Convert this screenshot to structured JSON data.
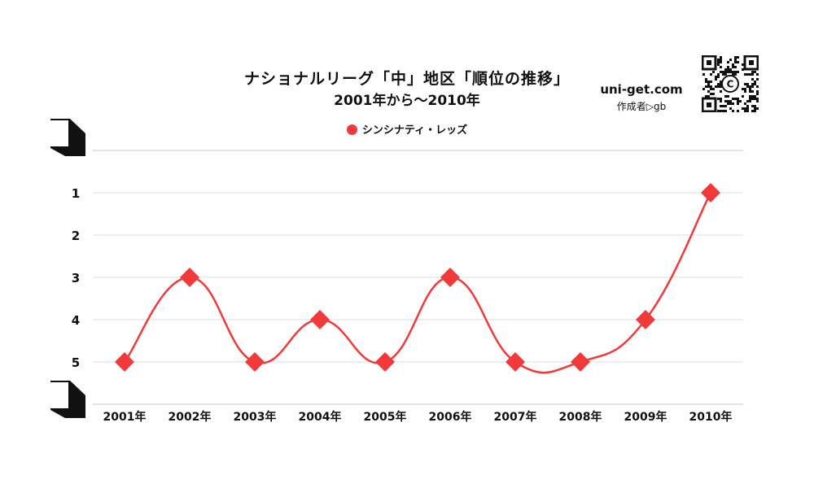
{
  "header": {
    "title": "ナショナルリーグ「中」地区「順位の推移」",
    "subtitle": "2001年から～2010年",
    "brand": "uni-get.com",
    "author": "作成者▷gb",
    "qr_center_letter": "C"
  },
  "chart_data": {
    "type": "line",
    "title": "ナショナルリーグ「中」地区「順位の推移」",
    "subtitle": "2001年から～2010年",
    "categories": [
      "2001年",
      "2002年",
      "2003年",
      "2004年",
      "2005年",
      "2006年",
      "2007年",
      "2008年",
      "2009年",
      "2010年"
    ],
    "series": [
      {
        "name": "シンシナティ・レッズ",
        "values": [
          5,
          3,
          5,
          4,
          5,
          3,
          5,
          5,
          4,
          1
        ],
        "color": "#f23a3a",
        "marker": "diamond"
      }
    ],
    "y_ticks": [
      1,
      2,
      3,
      4,
      5
    ],
    "ylim": [
      0,
      6
    ],
    "y_inverted": true,
    "grid": true,
    "legend": "top-center",
    "xlabel": "",
    "ylabel": ""
  }
}
